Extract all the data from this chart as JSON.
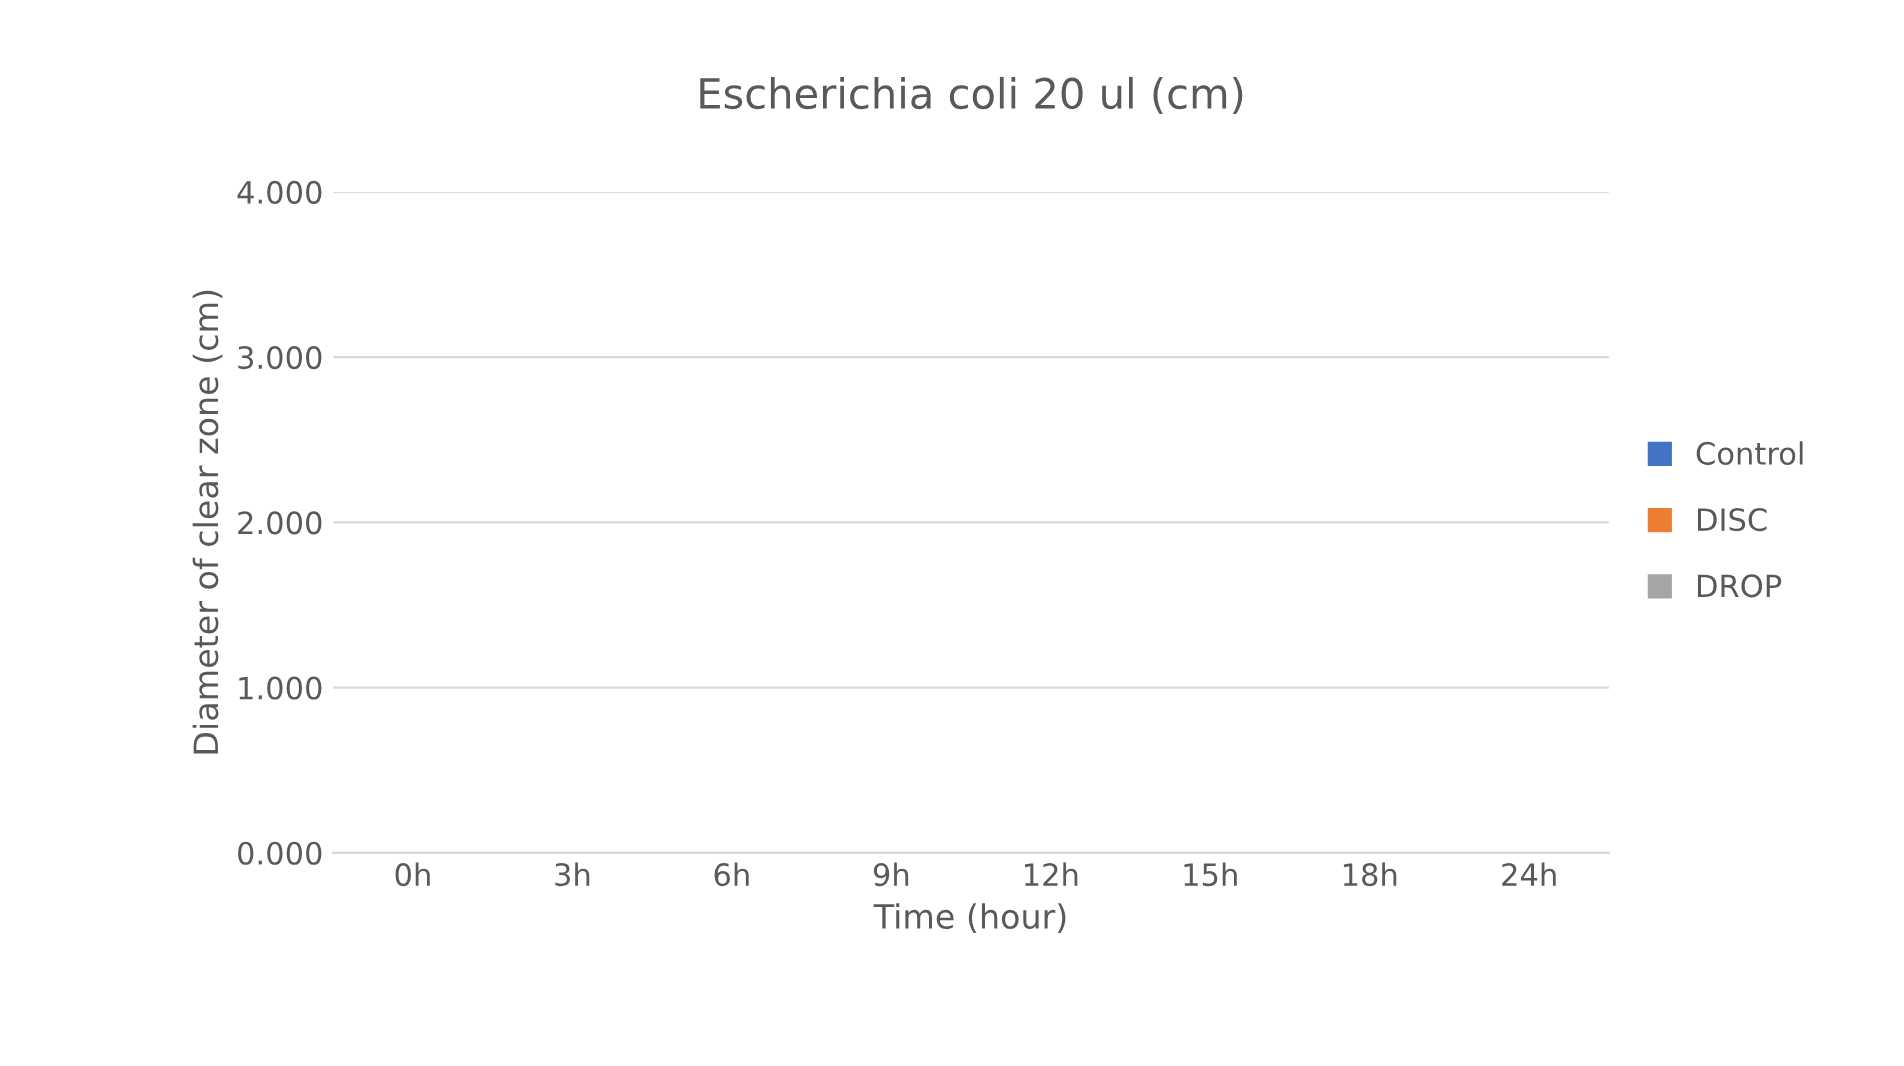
{
  "chart_data": {
    "type": "bar",
    "title": "Escherichia coli 20 ul (cm)",
    "xlabel": "Time (hour)",
    "ylabel": "Diameter of clear zone (cm)",
    "categories": [
      "0h",
      "3h",
      "6h",
      "9h",
      "12h",
      "15h",
      "18h",
      "24h"
    ],
    "series": [
      {
        "name": "Control",
        "color": "#4472c4",
        "values": [
          0,
          0,
          0,
          0,
          0,
          0,
          0,
          0
        ]
      },
      {
        "name": "DISC",
        "color": "#ed7d31",
        "values": [
          0,
          0,
          0,
          0,
          0,
          0,
          0,
          0
        ]
      },
      {
        "name": "DROP",
        "color": "#a5a5a5",
        "values": [
          0,
          0,
          0,
          0,
          0,
          0,
          0,
          0
        ]
      }
    ],
    "ylim": [
      0,
      4
    ],
    "yticks": [
      {
        "value": 0,
        "label": "0.000"
      },
      {
        "value": 1,
        "label": "1.000"
      },
      {
        "value": 2,
        "label": "2.000"
      },
      {
        "value": 3,
        "label": "3.000"
      },
      {
        "value": 4,
        "label": "4.000"
      }
    ],
    "grid": "y",
    "legend": "right"
  }
}
